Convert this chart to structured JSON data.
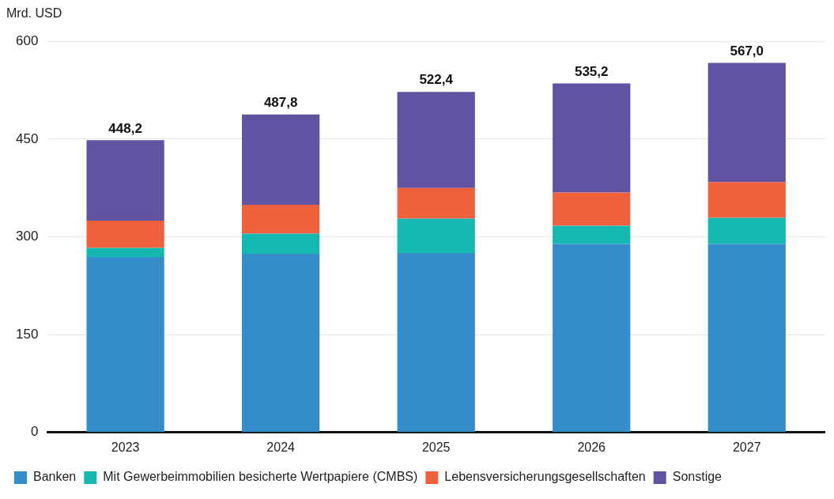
{
  "chart_data": {
    "type": "bar",
    "ylabel": "Mrd. USD",
    "categories": [
      "2023",
      "2024",
      "2025",
      "2026",
      "2027"
    ],
    "stacked": true,
    "series": [
      {
        "name": "Banken",
        "color": "#358ccb",
        "values": [
          269,
          274,
          275,
          289,
          289
        ]
      },
      {
        "name": "Mit Gewerbeimmobilien besicherte Wertpapiere (CMBS)",
        "color": "#14b8b0",
        "values": [
          14,
          31,
          53,
          28,
          40
        ]
      },
      {
        "name": "Lebensversicherungsgesellschaften",
        "color": "#ef603c",
        "values": [
          42,
          44,
          47,
          51,
          55
        ]
      },
      {
        "name": "Sonstige",
        "color": "#6153a1",
        "values": [
          123.2,
          138.8,
          147.4,
          167.2,
          183
        ]
      }
    ],
    "totals": [
      "448,2",
      "487,8",
      "522,4",
      "535,2",
      "567,0"
    ],
    "ylim": [
      0,
      600
    ],
    "yticks": [
      0,
      150,
      300,
      450,
      600
    ],
    "grid": "y",
    "legend": "bottom left"
  }
}
